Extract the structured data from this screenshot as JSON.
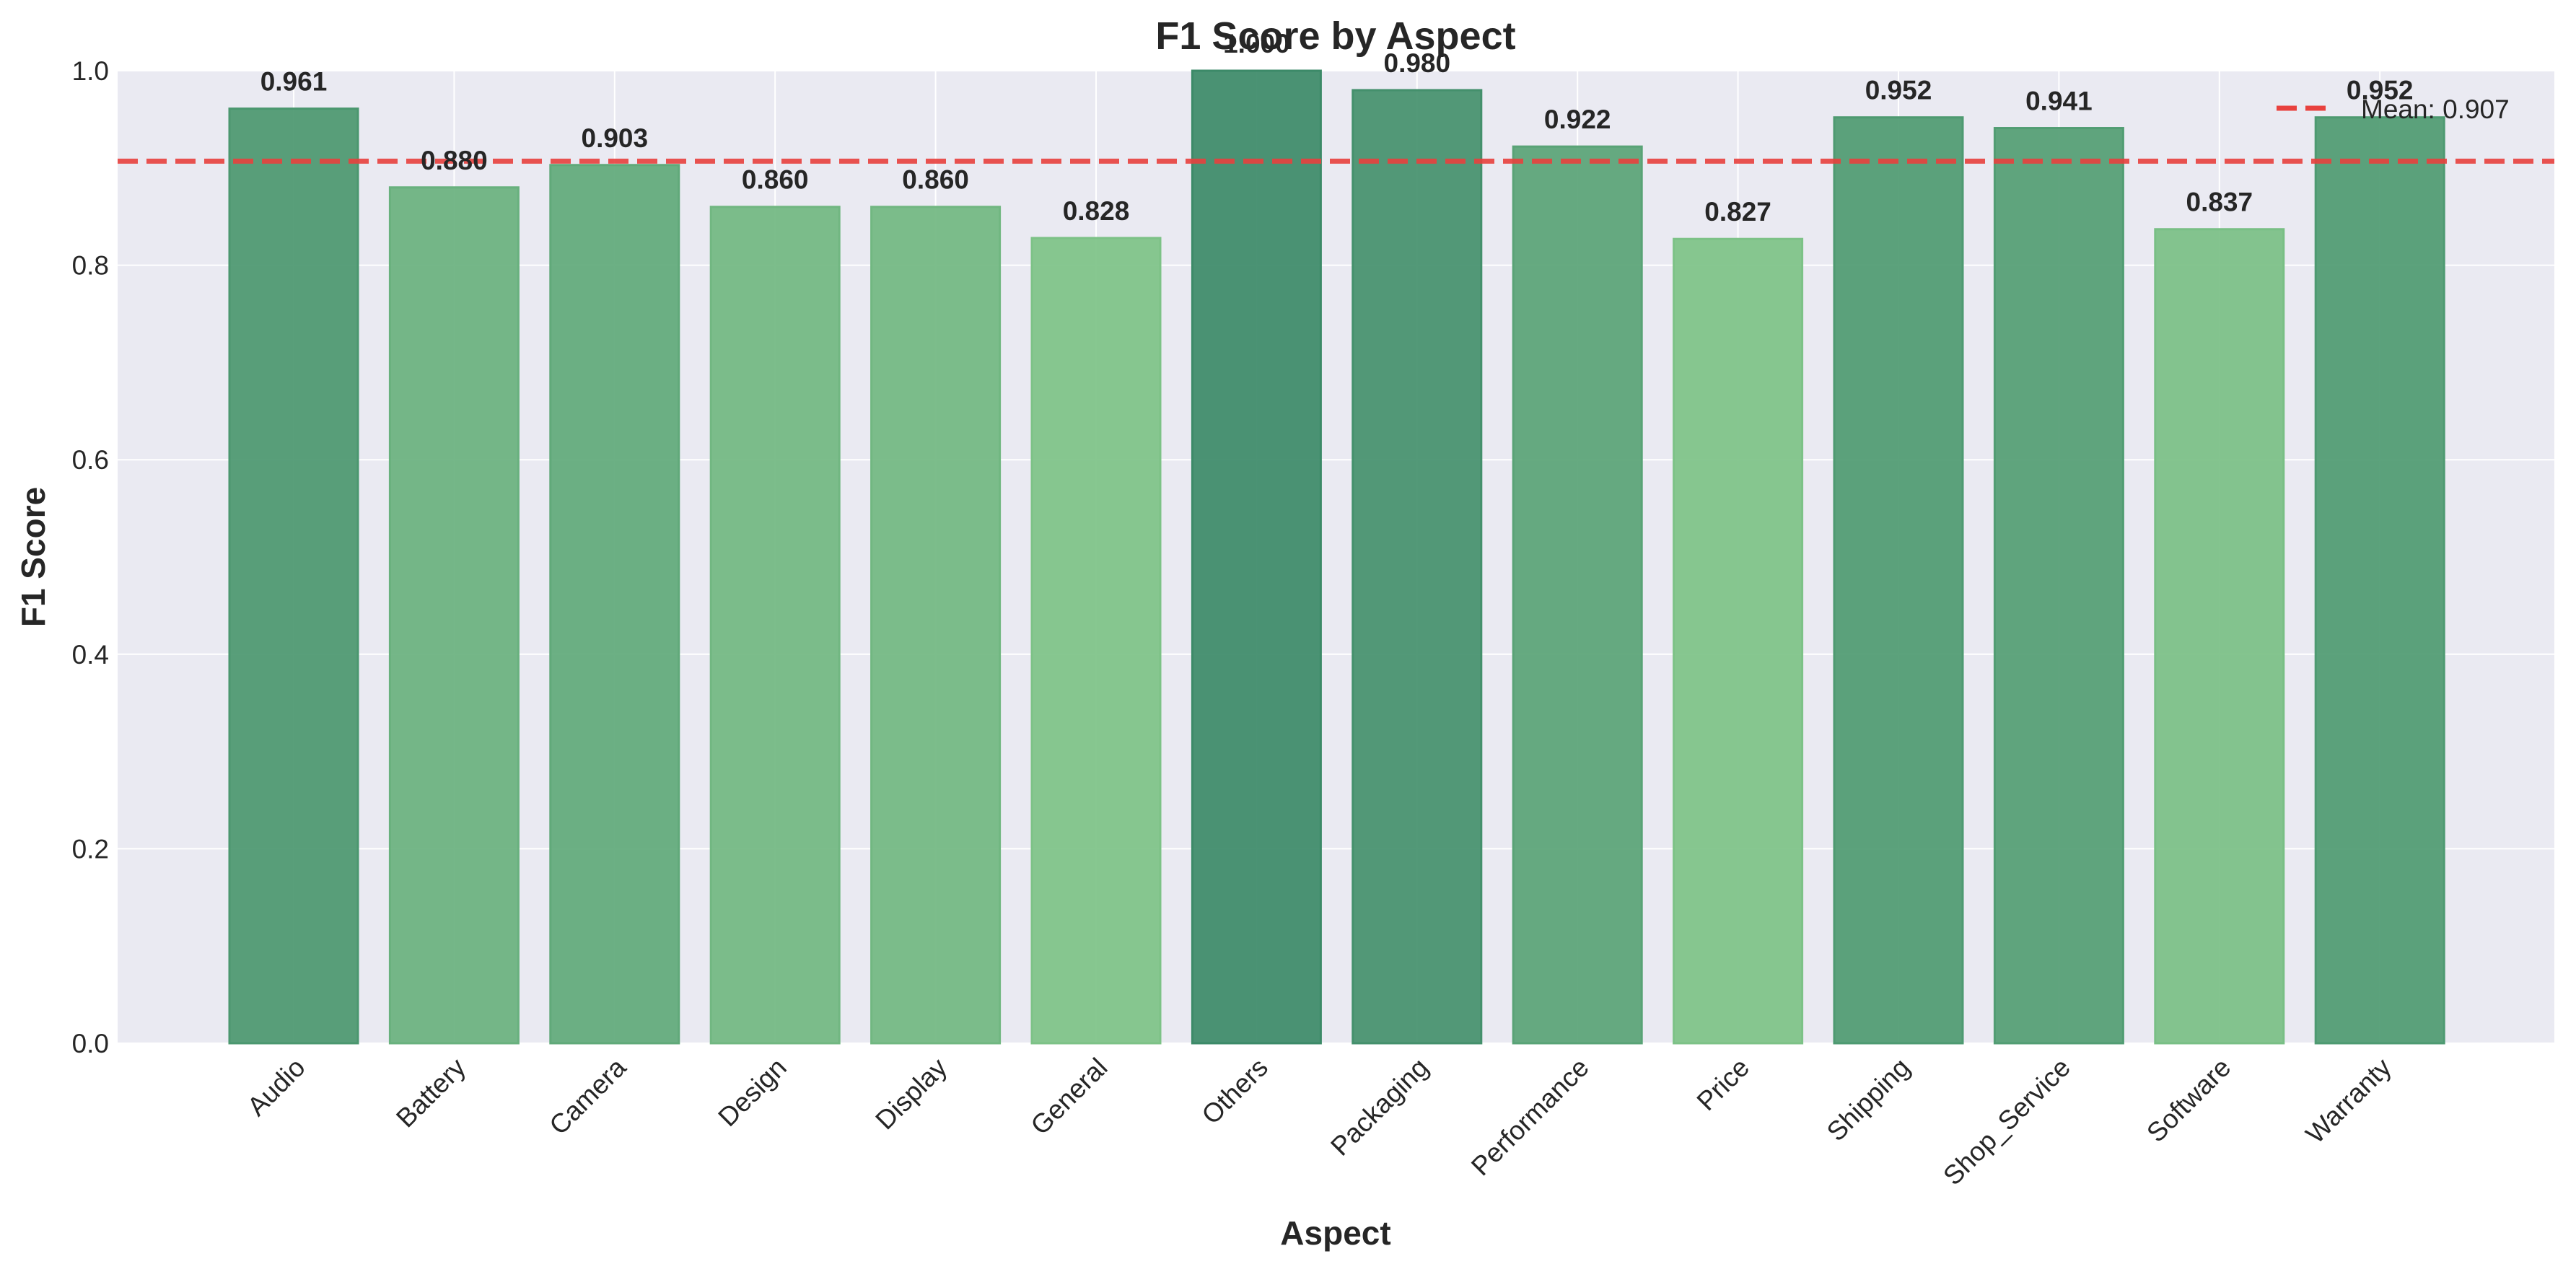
{
  "chart_data": {
    "type": "bar",
    "title": "F1 Score by Aspect",
    "xlabel": "Aspect",
    "ylabel": "F1 Score",
    "ylim": [
      0,
      1
    ],
    "yticks": [
      "0.0",
      "0.2",
      "0.4",
      "0.6",
      "0.8",
      "1.0"
    ],
    "categories": [
      "Audio",
      "Battery",
      "Camera",
      "Design",
      "Display",
      "General",
      "Others",
      "Packaging",
      "Performance",
      "Price",
      "Shipping",
      "Shop_Service",
      "Software",
      "Warranty"
    ],
    "values": [
      0.961,
      0.88,
      0.903,
      0.86,
      0.86,
      0.828,
      1.0,
      0.98,
      0.922,
      0.827,
      0.952,
      0.941,
      0.837,
      0.952
    ],
    "value_labels": [
      "0.961",
      "0.880",
      "0.903",
      "0.860",
      "0.860",
      "0.828",
      "1.000",
      "0.980",
      "0.922",
      "0.827",
      "0.952",
      "0.941",
      "0.837",
      "0.952"
    ],
    "mean_line": {
      "value": 0.907,
      "label": "Mean: 0.907",
      "color": "#e8413e",
      "style": "dashed"
    },
    "legend_position": "top-right",
    "grid": true,
    "colors": {
      "background": "#eaeaf2",
      "grid": "#ffffff",
      "bar_low": "#7dc287",
      "bar_high": "#3c8a68"
    }
  }
}
